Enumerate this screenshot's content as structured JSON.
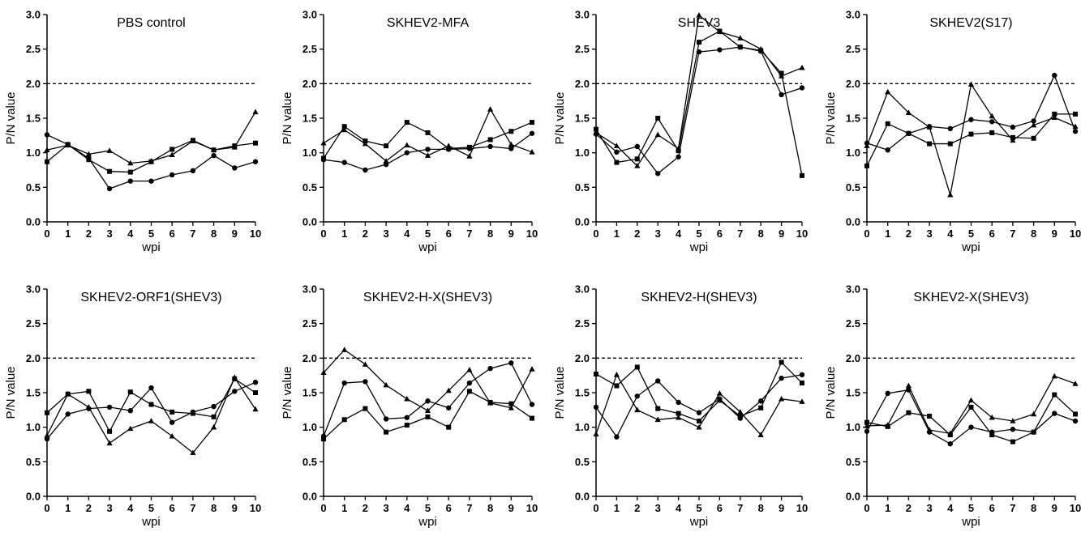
{
  "chart_data": [
    {
      "type": "line",
      "title": "PBS control",
      "xlabel": "wpi",
      "ylabel": "P/N value",
      "x": [
        0,
        1,
        2,
        3,
        4,
        5,
        6,
        7,
        8,
        9,
        10
      ],
      "ylim": [
        0,
        3.0
      ],
      "yticks": [
        "0.0",
        "0.5",
        "1.0",
        "1.5",
        "2.0",
        "2.5",
        "3.0"
      ],
      "xticks": [
        "0",
        "1",
        "2",
        "3",
        "4",
        "5",
        "6",
        "7",
        "8",
        "9",
        "10"
      ],
      "reference_line": 2.0,
      "series": [
        {
          "marker": "circle",
          "values": [
            1.26,
            1.12,
            0.92,
            0.48,
            0.59,
            0.59,
            0.68,
            0.74,
            0.96,
            0.78,
            0.87
          ]
        },
        {
          "marker": "square",
          "values": [
            0.87,
            1.12,
            0.9,
            0.73,
            0.72,
            0.87,
            1.05,
            1.18,
            1.04,
            1.1,
            1.14
          ]
        },
        {
          "marker": "triangle",
          "values": [
            1.04,
            1.11,
            0.98,
            1.03,
            0.85,
            0.88,
            0.97,
            1.17,
            1.04,
            1.08,
            1.59
          ]
        }
      ]
    },
    {
      "type": "line",
      "title": "SKHEV2-MFA",
      "xlabel": "wpi",
      "ylabel": "P/N value",
      "x": [
        0,
        1,
        2,
        3,
        4,
        5,
        6,
        7,
        8,
        9,
        10
      ],
      "ylim": [
        0,
        3.0
      ],
      "yticks": [
        "0.0",
        "0.5",
        "1.0",
        "1.5",
        "2.0",
        "2.5",
        "3.0"
      ],
      "xticks": [
        "0",
        "1",
        "2",
        "3",
        "4",
        "5",
        "6",
        "7",
        "8",
        "9",
        "10"
      ],
      "reference_line": 2.0,
      "series": [
        {
          "marker": "circle",
          "values": [
            0.9,
            0.86,
            0.75,
            0.83,
            1.0,
            1.05,
            1.05,
            1.06,
            1.09,
            1.06,
            1.28
          ]
        },
        {
          "marker": "square",
          "values": [
            0.92,
            1.38,
            1.17,
            1.1,
            1.44,
            1.29,
            1.06,
            1.08,
            1.19,
            1.31,
            1.44
          ]
        },
        {
          "marker": "triangle",
          "values": [
            1.14,
            1.33,
            1.13,
            0.88,
            1.11,
            0.96,
            1.1,
            0.95,
            1.63,
            1.12,
            1.01
          ]
        }
      ]
    },
    {
      "type": "line",
      "title": "SHEV3",
      "xlabel": "wpi",
      "ylabel": "P/N value",
      "x": [
        0,
        1,
        2,
        3,
        4,
        5,
        6,
        7,
        8,
        9,
        10
      ],
      "ylim": [
        0,
        3.0
      ],
      "yticks": [
        "0.0",
        "0.5",
        "1.0",
        "1.5",
        "2.0",
        "2.5",
        "3.0"
      ],
      "xticks": [
        "0",
        "1",
        "2",
        "3",
        "4",
        "5",
        "6",
        "7",
        "8",
        "9",
        "10"
      ],
      "reference_line": 2.0,
      "series": [
        {
          "marker": "circle",
          "values": [
            1.27,
            1.01,
            1.09,
            0.7,
            0.94,
            2.46,
            2.49,
            2.53,
            2.47,
            1.84,
            1.94
          ]
        },
        {
          "marker": "square",
          "values": [
            1.34,
            0.86,
            0.91,
            1.5,
            1.03,
            2.6,
            2.76,
            2.53,
            2.48,
            2.15,
            0.67
          ]
        },
        {
          "marker": "triangle",
          "values": [
            1.29,
            1.1,
            0.81,
            1.26,
            1.06,
            2.99,
            2.75,
            2.66,
            2.5,
            2.11,
            2.23
          ]
        }
      ]
    },
    {
      "type": "line",
      "title": "SKHEV2(S17)",
      "xlabel": "wpi",
      "ylabel": "P/N value",
      "x": [
        0,
        1,
        2,
        3,
        4,
        5,
        6,
        7,
        8,
        9,
        10
      ],
      "ylim": [
        0,
        3.0
      ],
      "yticks": [
        "0.0",
        "0.5",
        "1.0",
        "1.5",
        "2.0",
        "2.5",
        "3.0"
      ],
      "xticks": [
        "0",
        "1",
        "2",
        "3",
        "4",
        "5",
        "6",
        "7",
        "8",
        "9",
        "10"
      ],
      "reference_line": 2.0,
      "series": [
        {
          "marker": "circle",
          "values": [
            1.14,
            1.04,
            1.28,
            1.38,
            1.35,
            1.48,
            1.45,
            1.37,
            1.46,
            2.12,
            1.31
          ]
        },
        {
          "marker": "square",
          "values": [
            0.81,
            1.42,
            1.28,
            1.13,
            1.13,
            1.27,
            1.29,
            1.22,
            1.21,
            1.56,
            1.56
          ]
        },
        {
          "marker": "triangle",
          "values": [
            1.1,
            1.88,
            1.58,
            1.37,
            0.39,
            1.99,
            1.53,
            1.18,
            1.4,
            1.51,
            1.38
          ]
        }
      ]
    },
    {
      "type": "line",
      "title": "SKHEV2-ORF1(SHEV3)",
      "xlabel": "wpi",
      "ylabel": "P/N value",
      "x": [
        0,
        1,
        2,
        3,
        4,
        5,
        6,
        7,
        8,
        9,
        10
      ],
      "ylim": [
        0,
        3.0
      ],
      "yticks": [
        "0.0",
        "0.5",
        "1.0",
        "1.5",
        "2.0",
        "2.5",
        "3.0"
      ],
      "xticks": [
        "0",
        "1",
        "2",
        "3",
        "4",
        "5",
        "6",
        "7",
        "8",
        "9",
        "10"
      ],
      "reference_line": 2.0,
      "series": [
        {
          "marker": "circle",
          "values": [
            0.83,
            1.19,
            1.27,
            1.29,
            1.24,
            1.57,
            1.07,
            1.22,
            1.3,
            1.52,
            1.65
          ]
        },
        {
          "marker": "square",
          "values": [
            1.21,
            1.48,
            1.52,
            0.94,
            1.51,
            1.33,
            1.22,
            1.2,
            1.15,
            1.7,
            1.5
          ]
        },
        {
          "marker": "triangle",
          "values": [
            0.88,
            1.48,
            1.29,
            0.77,
            0.98,
            1.09,
            0.87,
            0.63,
            1.0,
            1.72,
            1.26
          ]
        }
      ]
    },
    {
      "type": "line",
      "title": "SKHEV2-H-X(SHEV3)",
      "xlabel": "wpi",
      "ylabel": "P/N value",
      "x": [
        0,
        1,
        2,
        3,
        4,
        5,
        6,
        7,
        8,
        9,
        10
      ],
      "ylim": [
        0,
        3.0
      ],
      "yticks": [
        "0.0",
        "0.5",
        "1.0",
        "1.5",
        "2.0",
        "2.5",
        "3.0"
      ],
      "xticks": [
        "0",
        "1",
        "2",
        "3",
        "4",
        "5",
        "6",
        "7",
        "8",
        "9",
        "10"
      ],
      "reference_line": 2.0,
      "series": [
        {
          "marker": "circle",
          "values": [
            0.87,
            1.64,
            1.66,
            1.12,
            1.14,
            1.38,
            1.28,
            1.64,
            1.85,
            1.93,
            1.33
          ]
        },
        {
          "marker": "square",
          "values": [
            0.83,
            1.11,
            1.27,
            0.93,
            1.03,
            1.15,
            1.0,
            1.52,
            1.36,
            1.34,
            1.13
          ]
        },
        {
          "marker": "triangle",
          "values": [
            1.79,
            2.12,
            1.91,
            1.61,
            1.41,
            1.24,
            1.53,
            1.83,
            1.35,
            1.28,
            1.84
          ]
        }
      ]
    },
    {
      "type": "line",
      "title": "SKHEV2-H(SHEV3)",
      "xlabel": "wpi",
      "ylabel": "P/N value",
      "x": [
        0,
        1,
        2,
        3,
        4,
        5,
        6,
        7,
        8,
        9,
        10
      ],
      "ylim": [
        0,
        3.0
      ],
      "yticks": [
        "0.0",
        "0.5",
        "1.0",
        "1.5",
        "2.0",
        "2.5",
        "3.0"
      ],
      "xticks": [
        "0",
        "1",
        "2",
        "3",
        "4",
        "5",
        "6",
        "7",
        "8",
        "9",
        "10"
      ],
      "reference_line": 2.0,
      "series": [
        {
          "marker": "circle",
          "values": [
            1.29,
            0.86,
            1.45,
            1.67,
            1.36,
            1.21,
            1.41,
            1.13,
            1.38,
            1.71,
            1.76
          ]
        },
        {
          "marker": "square",
          "values": [
            1.77,
            1.6,
            1.87,
            1.27,
            1.2,
            1.09,
            1.39,
            1.16,
            1.28,
            1.94,
            1.64
          ]
        },
        {
          "marker": "triangle",
          "values": [
            0.9,
            1.76,
            1.25,
            1.11,
            1.14,
            1.0,
            1.49,
            1.22,
            0.89,
            1.41,
            1.37
          ]
        }
      ]
    },
    {
      "type": "line",
      "title": "SKHEV2-X(SHEV3)",
      "xlabel": "wpi",
      "ylabel": "P/N value",
      "x": [
        0,
        1,
        2,
        3,
        4,
        5,
        6,
        7,
        8,
        9,
        10
      ],
      "ylim": [
        0,
        3.0
      ],
      "yticks": [
        "0.0",
        "0.5",
        "1.0",
        "1.5",
        "2.0",
        "2.5",
        "3.0"
      ],
      "xticks": [
        "0",
        "1",
        "2",
        "3",
        "4",
        "5",
        "6",
        "7",
        "8",
        "9",
        "10"
      ],
      "reference_line": 2.0,
      "series": [
        {
          "marker": "circle",
          "values": [
            0.94,
            1.49,
            1.54,
            0.93,
            0.76,
            1.0,
            0.93,
            0.97,
            0.93,
            1.2,
            1.09
          ]
        },
        {
          "marker": "square",
          "values": [
            1.07,
            1.01,
            1.21,
            1.16,
            0.89,
            1.29,
            0.89,
            0.79,
            0.93,
            1.47,
            1.19
          ]
        },
        {
          "marker": "triangle",
          "values": [
            1.02,
            1.03,
            1.6,
            0.96,
            0.91,
            1.39,
            1.14,
            1.09,
            1.19,
            1.74,
            1.63
          ]
        }
      ]
    }
  ]
}
